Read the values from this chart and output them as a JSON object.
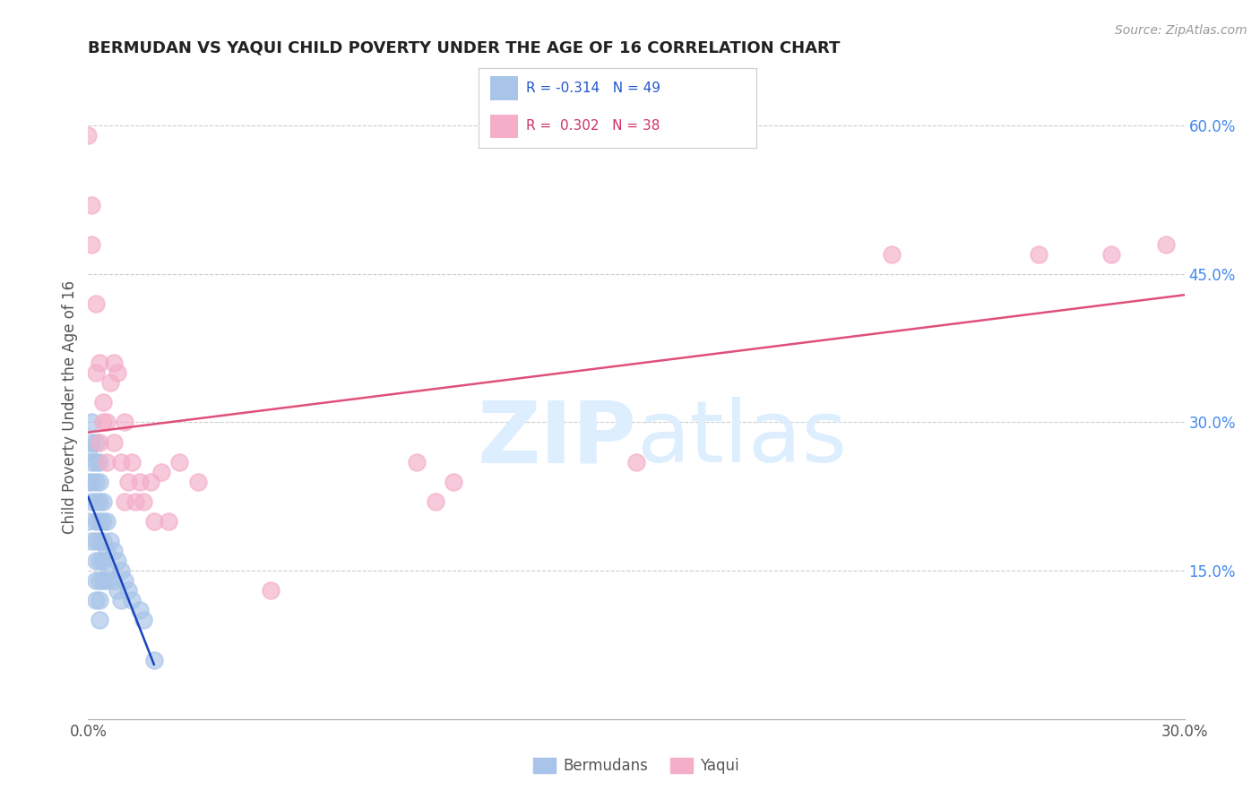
{
  "title": "BERMUDAN VS YAQUI CHILD POVERTY UNDER THE AGE OF 16 CORRELATION CHART",
  "source": "Source: ZipAtlas.com",
  "ylabel": "Child Poverty Under the Age of 16",
  "xlim": [
    0.0,
    0.3
  ],
  "ylim": [
    0.0,
    0.63
  ],
  "xticks": [
    0.0,
    0.05,
    0.1,
    0.15,
    0.2,
    0.25,
    0.3
  ],
  "xtick_labels": [
    "0.0%",
    "",
    "",
    "",
    "",
    "",
    "30.0%"
  ],
  "ytick_right_labels": [
    "",
    "15.0%",
    "",
    "30.0%",
    "",
    "45.0%",
    "",
    "60.0%"
  ],
  "ytick_right_values": [
    0.0,
    0.15,
    0.225,
    0.3,
    0.375,
    0.45,
    0.525,
    0.6
  ],
  "gridline_values": [
    0.15,
    0.3,
    0.45,
    0.6
  ],
  "bermudans_color": "#a8c4e8",
  "yaqui_color": "#f4aec8",
  "bermudans_line_color": "#1a44bb",
  "yaqui_line_color": "#e0507a",
  "bermudans_x": [
    0.0,
    0.0,
    0.0,
    0.001,
    0.001,
    0.001,
    0.001,
    0.001,
    0.001,
    0.002,
    0.002,
    0.002,
    0.002,
    0.002,
    0.002,
    0.002,
    0.002,
    0.002,
    0.003,
    0.003,
    0.003,
    0.003,
    0.003,
    0.003,
    0.003,
    0.003,
    0.003,
    0.004,
    0.004,
    0.004,
    0.004,
    0.004,
    0.005,
    0.005,
    0.005,
    0.006,
    0.006,
    0.007,
    0.007,
    0.008,
    0.008,
    0.009,
    0.009,
    0.01,
    0.011,
    0.012,
    0.014,
    0.015,
    0.018
  ],
  "bermudans_y": [
    0.27,
    0.24,
    0.2,
    0.3,
    0.28,
    0.26,
    0.24,
    0.22,
    0.18,
    0.28,
    0.26,
    0.24,
    0.22,
    0.2,
    0.18,
    0.16,
    0.14,
    0.12,
    0.26,
    0.24,
    0.22,
    0.2,
    0.18,
    0.16,
    0.14,
    0.12,
    0.1,
    0.22,
    0.2,
    0.18,
    0.16,
    0.14,
    0.2,
    0.17,
    0.14,
    0.18,
    0.15,
    0.17,
    0.14,
    0.16,
    0.13,
    0.15,
    0.12,
    0.14,
    0.13,
    0.12,
    0.11,
    0.1,
    0.06
  ],
  "yaqui_x": [
    0.0,
    0.001,
    0.001,
    0.002,
    0.002,
    0.003,
    0.003,
    0.004,
    0.004,
    0.005,
    0.005,
    0.006,
    0.007,
    0.007,
    0.008,
    0.009,
    0.01,
    0.01,
    0.011,
    0.012,
    0.013,
    0.014,
    0.015,
    0.017,
    0.018,
    0.02,
    0.022,
    0.025,
    0.03,
    0.05,
    0.09,
    0.095,
    0.1,
    0.15,
    0.22,
    0.26,
    0.28,
    0.295
  ],
  "yaqui_y": [
    0.59,
    0.52,
    0.48,
    0.42,
    0.35,
    0.36,
    0.28,
    0.32,
    0.3,
    0.3,
    0.26,
    0.34,
    0.36,
    0.28,
    0.35,
    0.26,
    0.3,
    0.22,
    0.24,
    0.26,
    0.22,
    0.24,
    0.22,
    0.24,
    0.2,
    0.25,
    0.2,
    0.26,
    0.24,
    0.13,
    0.26,
    0.22,
    0.24,
    0.26,
    0.47,
    0.47,
    0.47,
    0.48
  ]
}
